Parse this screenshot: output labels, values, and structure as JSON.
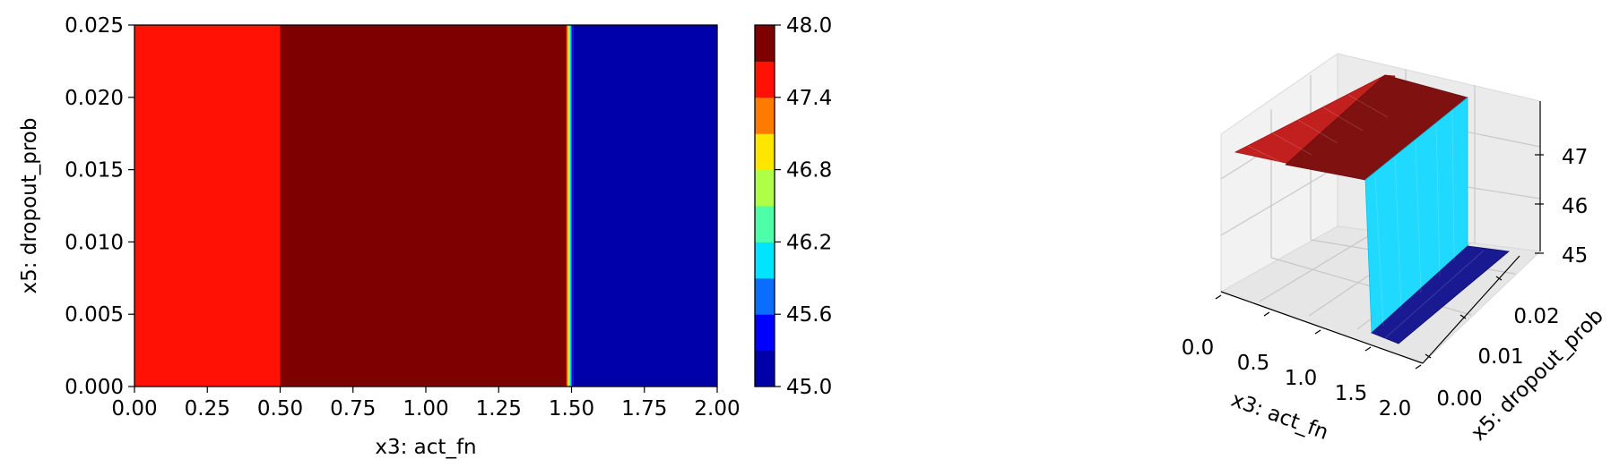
{
  "chart_data": [
    {
      "type": "heatmap",
      "xlabel": "x3: act_fn",
      "ylabel": "x5: dropout_prob",
      "xlim": [
        0,
        2
      ],
      "ylim": [
        0,
        0.025
      ],
      "xticks": [
        "0.00",
        "0.25",
        "0.50",
        "0.75",
        "1.00",
        "1.25",
        "1.50",
        "1.75",
        "2.00"
      ],
      "yticks": [
        "0.000",
        "0.005",
        "0.010",
        "0.015",
        "0.020",
        "0.025"
      ],
      "regions": [
        {
          "x_from": 0.0,
          "x_to": 0.5,
          "value": 47.55
        },
        {
          "x_from": 0.5,
          "x_to": 1.48,
          "value": 47.9
        },
        {
          "x_from": 1.48,
          "x_to": 1.505,
          "value": 46.4,
          "note_gradient": true
        },
        {
          "x_from": 1.505,
          "x_to": 2.0,
          "value": 45.1
        }
      ],
      "colorbar": {
        "range": [
          45.0,
          48.0
        ],
        "ticks": [
          "45.0",
          "45.6",
          "46.2",
          "46.8",
          "47.4",
          "48.0"
        ],
        "levels": 10,
        "colormap": "jet",
        "level_colors": [
          "#0000aa",
          "#0000ff",
          "#0a6dff",
          "#00e4ff",
          "#4dffa9",
          "#b0ff47",
          "#ffe600",
          "#ff7b00",
          "#ff1205",
          "#7f0000"
        ]
      },
      "grid": false
    },
    {
      "type": "surface3d",
      "xlabel": "x3: act_fn",
      "ylabel": "x5: dropout_prob",
      "xticks": [
        "0.0",
        "0.5",
        "1.0",
        "1.5",
        "2.0"
      ],
      "yticks": [
        "0.00",
        "0.01",
        "0.02"
      ],
      "zticks": [
        "45",
        "46",
        "47"
      ],
      "zlim": [
        45,
        47.5
      ],
      "segments": [
        {
          "x_from": 0.0,
          "x_to": 0.5,
          "z": 47.55,
          "color": "#c21212"
        },
        {
          "x_from": 0.5,
          "x_to": 1.5,
          "z": 47.9,
          "color": "#7a0f0f"
        },
        {
          "x_from": 1.5,
          "x_to": 1.5,
          "z_from": 47.9,
          "z_to": 45.1,
          "color": "#1ed6ff"
        },
        {
          "x_from": 1.5,
          "x_to": 2.0,
          "z": 45.1,
          "color": "#16168a"
        }
      ],
      "grid": true
    }
  ]
}
